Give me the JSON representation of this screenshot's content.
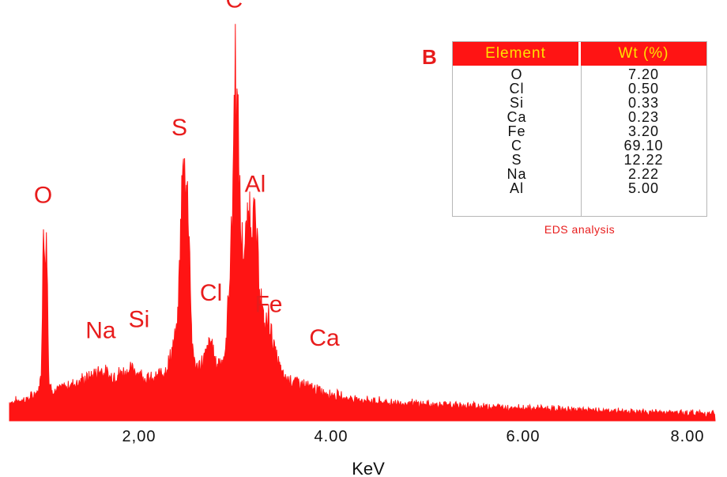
{
  "chart_data": {
    "type": "area",
    "title": "",
    "xlabel": "KeV",
    "ylabel": "",
    "xlim": [
      0.65,
      8.0
    ],
    "ylim": [
      0,
      100
    ],
    "x_ticks": [
      {
        "value": 2.0,
        "label": "2,00"
      },
      {
        "value": 4.0,
        "label": "4.00"
      },
      {
        "value": 6.0,
        "label": "6.00"
      },
      {
        "value": 8.0,
        "label": "8.00"
      }
    ],
    "series": [
      {
        "color": "#ff1414",
        "points": [
          [
            0.65,
            5
          ],
          [
            0.85,
            6
          ],
          [
            0.95,
            8
          ],
          [
            0.98,
            12
          ],
          [
            1.0,
            48
          ],
          [
            1.04,
            48
          ],
          [
            1.06,
            10
          ],
          [
            1.12,
            8
          ],
          [
            1.3,
            10
          ],
          [
            1.5,
            12
          ],
          [
            1.6,
            14
          ],
          [
            1.7,
            12
          ],
          [
            1.8,
            13
          ],
          [
            1.95,
            14
          ],
          [
            2.05,
            12
          ],
          [
            2.15,
            11
          ],
          [
            2.3,
            15
          ],
          [
            2.4,
            25
          ],
          [
            2.45,
            66
          ],
          [
            2.48,
            70
          ],
          [
            2.52,
            55
          ],
          [
            2.55,
            20
          ],
          [
            2.6,
            14
          ],
          [
            2.68,
            17
          ],
          [
            2.75,
            22
          ],
          [
            2.8,
            15
          ],
          [
            2.9,
            18
          ],
          [
            2.97,
            55
          ],
          [
            3.0,
            100
          ],
          [
            3.03,
            80
          ],
          [
            3.06,
            50
          ],
          [
            3.1,
            46
          ],
          [
            3.15,
            58
          ],
          [
            3.2,
            55
          ],
          [
            3.25,
            40
          ],
          [
            3.3,
            25
          ],
          [
            3.35,
            28
          ],
          [
            3.42,
            18
          ],
          [
            3.5,
            12
          ],
          [
            3.7,
            10
          ],
          [
            3.9,
            8
          ],
          [
            4.2,
            6
          ],
          [
            4.6,
            5
          ],
          [
            5.0,
            4.5
          ],
          [
            6.0,
            3.5
          ],
          [
            7.0,
            2.5
          ],
          [
            7.5,
            2.2
          ],
          [
            8.0,
            2
          ]
        ]
      }
    ],
    "annotations": [
      {
        "text": "O",
        "x": 1.0,
        "y": 58
      },
      {
        "text": "Na",
        "x": 1.6,
        "y": 22
      },
      {
        "text": "Si",
        "x": 2.0,
        "y": 25
      },
      {
        "text": "S",
        "x": 2.42,
        "y": 76
      },
      {
        "text": "Cl",
        "x": 2.75,
        "y": 32
      },
      {
        "text": "C",
        "x": 2.99,
        "y": 110
      },
      {
        "text": "Al",
        "x": 3.21,
        "y": 61
      },
      {
        "text": "Fe",
        "x": 3.35,
        "y": 29
      },
      {
        "text": "Ca",
        "x": 3.93,
        "y": 20
      }
    ]
  },
  "table": {
    "panel_letter": "B",
    "headers": {
      "element": "Element",
      "wt": "Wt (%)"
    },
    "rows": [
      {
        "element": "O",
        "wt": "7.20"
      },
      {
        "element": "Cl",
        "wt": "0.50"
      },
      {
        "element": "Si",
        "wt": "0.33"
      },
      {
        "element": "Ca",
        "wt": "0.23"
      },
      {
        "element": "Fe",
        "wt": "3.20"
      },
      {
        "element": "C",
        "wt": "69.10"
      },
      {
        "element": "S",
        "wt": "12.22"
      },
      {
        "element": "Na",
        "wt": "2.22"
      },
      {
        "element": "Al",
        "wt": "5.00"
      }
    ],
    "caption": "EDS analysis"
  },
  "colors": {
    "spectrum": "#ff1414",
    "label": "#e81c1c",
    "header_text": "#ffe100"
  }
}
